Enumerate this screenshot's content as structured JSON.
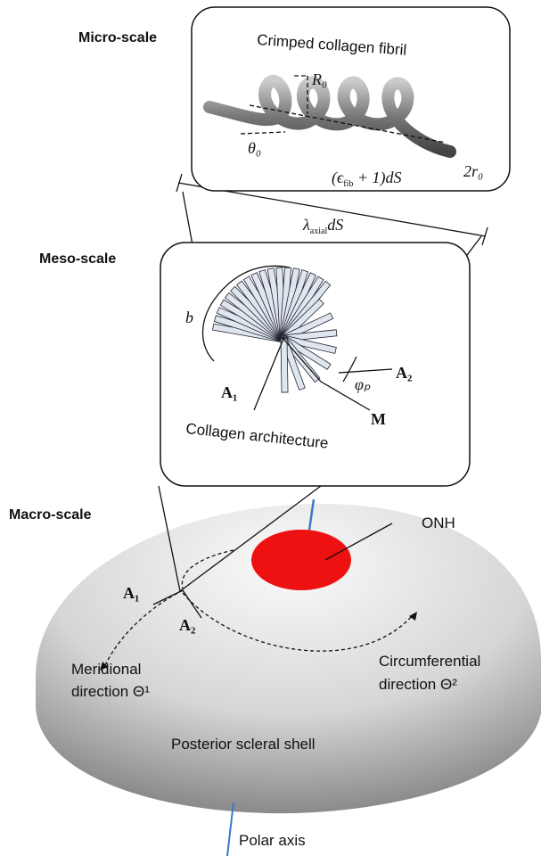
{
  "labels": {
    "micro": "Micro-scale",
    "meso": "Meso-scale",
    "macro": "Macro-scale"
  },
  "micro_box": {
    "title": "Crimped collagen fibril",
    "radius": "R₀",
    "angle": "θ₀",
    "stretch": {
      "open": "(",
      "symbol": "ϵ",
      "sub": "fib",
      "tail": " + 1)dS"
    },
    "thickness": "2r₀"
  },
  "axial": {
    "symbol": "λ",
    "sub": "axial",
    "tail": "dS"
  },
  "meso_box": {
    "title": "Collagen architecture",
    "b": "b",
    "a1": "A₁",
    "a2": "A₂",
    "phi": "φₚ",
    "m": "M"
  },
  "macro": {
    "onh": "ONH",
    "a1": "A₁",
    "a2": "A₂",
    "meridional": [
      "Meridional",
      "direction Θ¹"
    ],
    "circumferential": [
      "Circumferential",
      "direction Θ²"
    ],
    "shell": "Posterior scleral shell",
    "polar": "Polar axis"
  }
}
